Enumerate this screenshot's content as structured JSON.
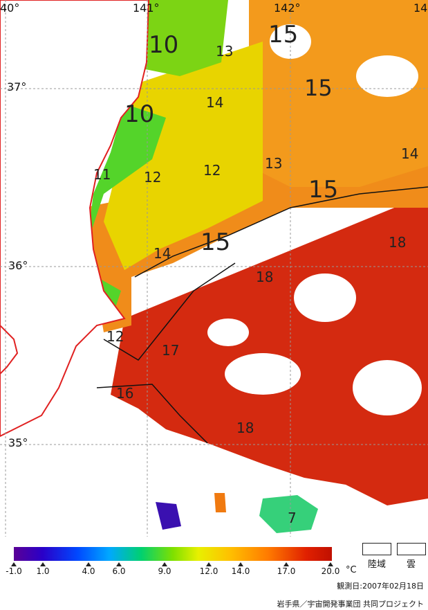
{
  "map": {
    "longitude_labels": [
      "40°",
      "141°",
      "142°",
      "14"
    ],
    "latitude_labels": [
      "37°",
      "36°",
      "35°"
    ],
    "contour_labels": [
      "10",
      "13",
      "15",
      "15",
      "14",
      "10",
      "12",
      "12",
      "13",
      "14",
      "11",
      "15",
      "14",
      "15",
      "18",
      "18",
      "12",
      "17",
      "16",
      "18",
      "7"
    ]
  },
  "colorbar": {
    "ticks": [
      "-1.0",
      "1.0",
      "4.0",
      "6.0",
      "9.0",
      "12.0",
      "14.0",
      "17.0",
      "20.0"
    ],
    "unit": "°C"
  },
  "legend": {
    "land_label": "陸域",
    "cloud_label": "雲"
  },
  "observation_date": "観測日:2007年02月18日",
  "credit": "岩手県／宇宙開発事業団 共同プロジェクト"
}
